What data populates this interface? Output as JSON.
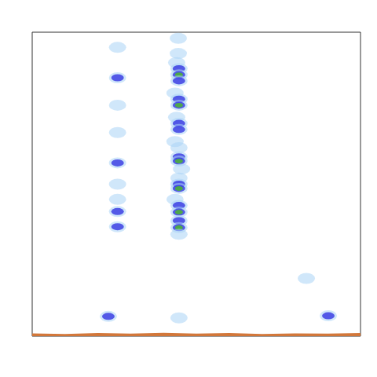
{
  "chart_data": {
    "type": "heatmap",
    "tick_labels": false,
    "xlim": [
      0,
      100
    ],
    "ylim": [
      0,
      100
    ],
    "zlim": [
      1,
      3
    ],
    "colors": [
      "#a9d3f5",
      "#2a2ae0",
      "#4caf3a"
    ],
    "cells": [
      [
        44.5,
        98,
        1
      ],
      [
        44.5,
        93,
        1
      ],
      [
        44,
        90,
        1
      ],
      [
        44.7,
        88,
        2
      ],
      [
        44.7,
        86,
        3
      ],
      [
        44.7,
        84,
        2
      ],
      [
        43.5,
        80,
        1
      ],
      [
        44.7,
        78,
        2
      ],
      [
        44.7,
        76,
        3
      ],
      [
        44,
        72,
        1
      ],
      [
        44.7,
        70,
        2
      ],
      [
        44.7,
        68,
        2
      ],
      [
        43.5,
        64,
        1
      ],
      [
        44.7,
        62,
        1
      ],
      [
        44.7,
        59,
        2
      ],
      [
        44.7,
        57.6,
        3
      ],
      [
        45.5,
        55,
        1
      ],
      [
        44.7,
        52,
        1
      ],
      [
        44.7,
        50,
        2
      ],
      [
        44.7,
        48.6,
        3
      ],
      [
        43.5,
        45,
        1
      ],
      [
        44.7,
        43,
        2
      ],
      [
        44.7,
        40.8,
        3
      ],
      [
        44.7,
        38,
        2
      ],
      [
        44.7,
        35.7,
        3
      ],
      [
        44.7,
        33.5,
        1
      ],
      [
        26,
        95,
        1
      ],
      [
        26,
        85,
        2
      ],
      [
        26,
        76,
        1
      ],
      [
        26,
        67,
        1
      ],
      [
        26,
        57,
        2
      ],
      [
        26,
        50,
        1
      ],
      [
        26,
        45,
        1
      ],
      [
        26,
        41,
        2
      ],
      [
        26,
        36,
        2
      ],
      [
        23.2,
        6.5,
        2
      ],
      [
        44.7,
        6,
        1
      ],
      [
        83.5,
        19,
        1
      ],
      [
        90.2,
        6.7,
        2
      ]
    ],
    "series": [
      {
        "type": "line",
        "color": "#d2773a",
        "x": [
          0,
          10,
          20,
          30,
          40,
          50,
          60,
          70,
          80,
          90,
          100
        ],
        "values": [
          0.4,
          0.2,
          0.5,
          0.3,
          0.6,
          0.3,
          0.5,
          0.2,
          0.4,
          0.3,
          0.5
        ]
      }
    ]
  }
}
